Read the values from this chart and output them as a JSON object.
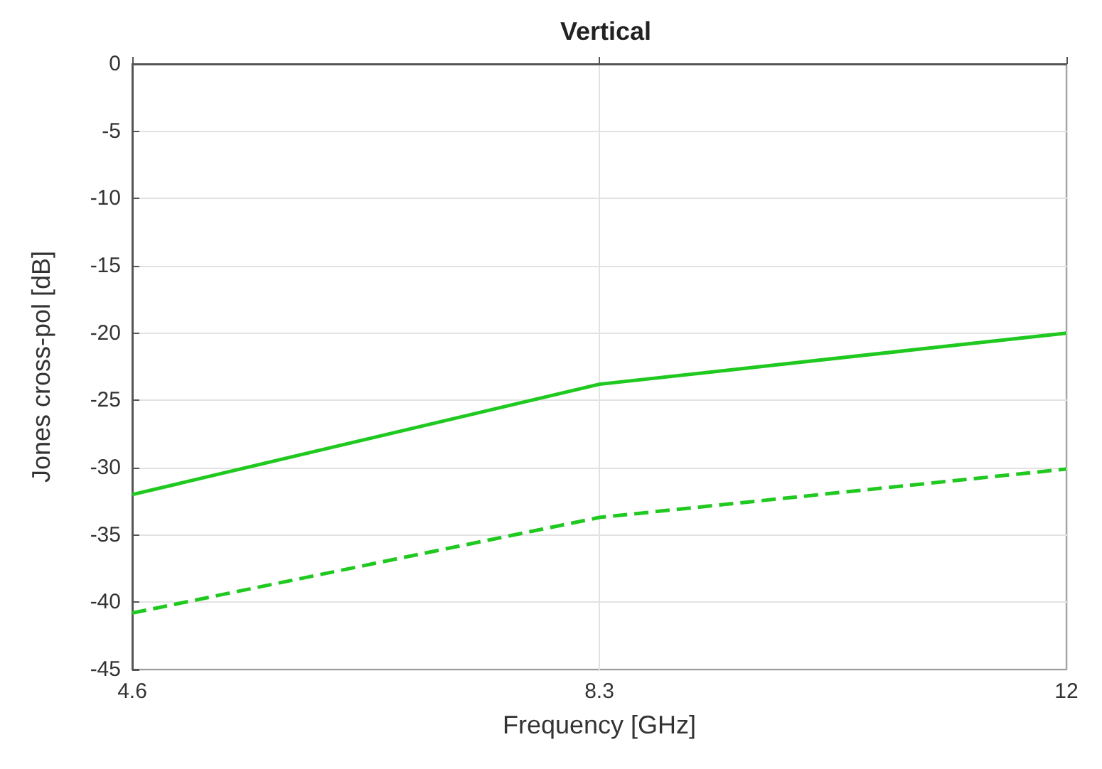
{
  "chart_data": {
    "type": "line",
    "title": "Vertical",
    "xlabel": "Frequency [GHz]",
    "ylabel": "Jones cross-pol [dB]",
    "x": [
      4.6,
      8.3,
      12
    ],
    "series": [
      {
        "color": "#1fc91f",
        "line_style": "solid",
        "values": [
          -32,
          -23.8,
          -20
        ]
      },
      {
        "color": "#1fc91f",
        "line_style": "dashed",
        "values": [
          -40.8,
          -33.7,
          -30.1
        ]
      }
    ],
    "xlim": [
      4.6,
      12
    ],
    "xticks": [
      4.6,
      8.3,
      12
    ],
    "ylim": [
      -45,
      0
    ],
    "yticks": [
      -45,
      -40,
      -35,
      -30,
      -25,
      -20,
      -15,
      -10,
      -5,
      0
    ],
    "grid": true,
    "marker": "none"
  }
}
